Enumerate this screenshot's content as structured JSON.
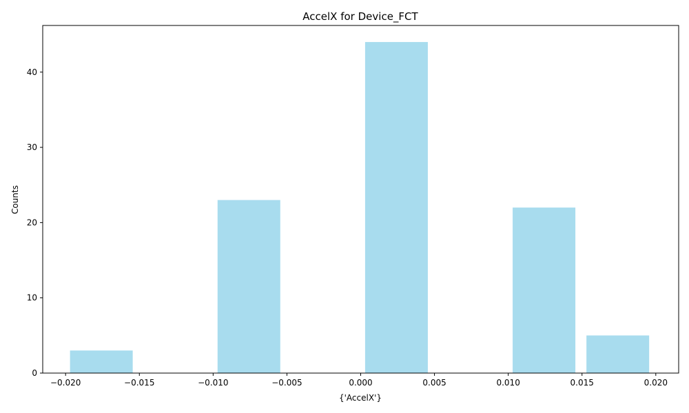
{
  "chart_data": {
    "type": "bar",
    "title": "AccelX for Device_FCT",
    "xlabel": "{'AccelX'}",
    "ylabel": "Counts",
    "bar_color": "#a8dcee",
    "bin_width": 0.00425,
    "bars": [
      {
        "x_left": -0.0197,
        "x_right": -0.01545,
        "count": 3
      },
      {
        "x_left": -0.0097,
        "x_right": -0.00545,
        "count": 23
      },
      {
        "x_left": 0.0003,
        "x_right": 0.00455,
        "count": 44
      },
      {
        "x_left": 0.0103,
        "x_right": 0.01455,
        "count": 22
      },
      {
        "x_left": 0.0153,
        "x_right": 0.01955,
        "count": 5
      }
    ],
    "xlim": [
      -0.02155,
      0.02155
    ],
    "ylim": [
      0,
      46.2
    ],
    "x_ticks": [
      -0.02,
      -0.015,
      -0.01,
      -0.005,
      0.0,
      0.005,
      0.01,
      0.015,
      0.02
    ],
    "x_tick_labels": [
      "−0.020",
      "−0.015",
      "−0.010",
      "−0.005",
      "0.000",
      "0.005",
      "0.010",
      "0.015",
      "0.020"
    ],
    "y_ticks": [
      0,
      10,
      20,
      30,
      40
    ],
    "y_tick_labels": [
      "0",
      "10",
      "20",
      "30",
      "40"
    ],
    "grid": false,
    "legend": "none"
  }
}
